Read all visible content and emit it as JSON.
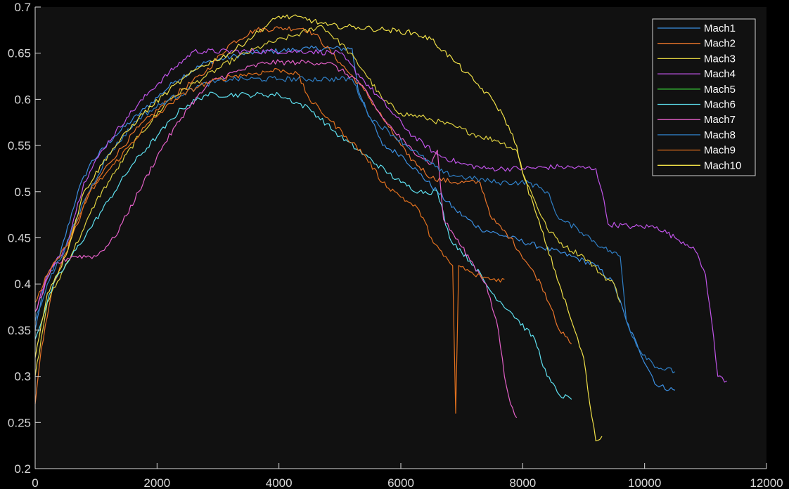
{
  "chart_data": {
    "type": "line",
    "title": "",
    "xlabel": "",
    "ylabel": "",
    "xlim": [
      0,
      12000
    ],
    "ylim": [
      0.2,
      0.7
    ],
    "x_ticks": [
      "0",
      "2000",
      "4000",
      "6000",
      "8000",
      "10000",
      "12000"
    ],
    "y_ticks": [
      "0.2",
      "0.25",
      "0.3",
      "0.35",
      "0.4",
      "0.45",
      "0.5",
      "0.55",
      "0.6",
      "0.65",
      "0.7"
    ],
    "grid": false,
    "legend_position": "top-right",
    "background_color": "#111111",
    "series": [
      {
        "name": "Mach1",
        "color": "#3b8ee0",
        "points": [
          [
            0,
            0.35
          ],
          [
            150,
            0.4
          ],
          [
            400,
            0.43
          ],
          [
            700,
            0.5
          ],
          [
            900,
            0.53
          ],
          [
            1300,
            0.56
          ],
          [
            1800,
            0.59
          ],
          [
            2300,
            0.62
          ],
          [
            2800,
            0.64
          ],
          [
            3500,
            0.65
          ],
          [
            4500,
            0.655
          ],
          [
            5200,
            0.655
          ],
          [
            5300,
            0.61
          ],
          [
            5500,
            0.58
          ],
          [
            5700,
            0.55
          ],
          [
            6000,
            0.54
          ],
          [
            6300,
            0.52
          ],
          [
            6600,
            0.5
          ],
          [
            6900,
            0.48
          ],
          [
            7300,
            0.46
          ],
          [
            7800,
            0.45
          ],
          [
            8300,
            0.44
          ],
          [
            8800,
            0.43
          ],
          [
            9200,
            0.42
          ],
          [
            9500,
            0.4
          ],
          [
            9700,
            0.36
          ],
          [
            9900,
            0.33
          ],
          [
            10200,
            0.29
          ],
          [
            10500,
            0.285
          ]
        ]
      },
      {
        "name": "Mach2",
        "color": "#e8742a",
        "points": [
          [
            0,
            0.27
          ],
          [
            100,
            0.33
          ],
          [
            300,
            0.4
          ],
          [
            600,
            0.45
          ],
          [
            900,
            0.5
          ],
          [
            1200,
            0.53
          ],
          [
            1700,
            0.57
          ],
          [
            2200,
            0.6
          ],
          [
            2800,
            0.63
          ],
          [
            3200,
            0.66
          ],
          [
            3600,
            0.675
          ],
          [
            4000,
            0.677
          ],
          [
            4400,
            0.677
          ],
          [
            4600,
            0.67
          ],
          [
            5000,
            0.64
          ],
          [
            5400,
            0.61
          ],
          [
            5800,
            0.57
          ],
          [
            6100,
            0.54
          ],
          [
            6500,
            0.515
          ],
          [
            6900,
            0.51
          ],
          [
            7300,
            0.51
          ],
          [
            7500,
            0.47
          ],
          [
            7800,
            0.45
          ],
          [
            8100,
            0.42
          ],
          [
            8300,
            0.4
          ],
          [
            8500,
            0.37
          ],
          [
            8600,
            0.35
          ],
          [
            8800,
            0.335
          ]
        ]
      },
      {
        "name": "Mach3",
        "color": "#ded040",
        "points": [
          [
            0,
            0.3
          ],
          [
            200,
            0.38
          ],
          [
            500,
            0.42
          ],
          [
            800,
            0.46
          ],
          [
            1000,
            0.49
          ],
          [
            1300,
            0.52
          ],
          [
            1700,
            0.56
          ],
          [
            2200,
            0.6
          ],
          [
            2800,
            0.625
          ],
          [
            3300,
            0.645
          ],
          [
            3800,
            0.66
          ],
          [
            4300,
            0.67
          ],
          [
            4700,
            0.68
          ],
          [
            5100,
            0.655
          ],
          [
            5400,
            0.63
          ],
          [
            5700,
            0.6
          ],
          [
            6000,
            0.585
          ],
          [
            6400,
            0.58
          ],
          [
            6900,
            0.57
          ],
          [
            7300,
            0.56
          ],
          [
            7600,
            0.555
          ],
          [
            7900,
            0.545
          ],
          [
            8000,
            0.52
          ],
          [
            8200,
            0.49
          ],
          [
            8400,
            0.46
          ],
          [
            8700,
            0.44
          ],
          [
            9000,
            0.43
          ],
          [
            9300,
            0.41
          ],
          [
            9500,
            0.4
          ],
          [
            9600,
            0.38
          ]
        ]
      },
      {
        "name": "Mach4",
        "color": "#c054e8",
        "points": [
          [
            0,
            0.37
          ],
          [
            200,
            0.41
          ],
          [
            500,
            0.44
          ],
          [
            800,
            0.51
          ],
          [
            1100,
            0.545
          ],
          [
            1500,
            0.58
          ],
          [
            1900,
            0.61
          ],
          [
            2300,
            0.635
          ],
          [
            2600,
            0.652
          ],
          [
            3500,
            0.652
          ],
          [
            4500,
            0.652
          ],
          [
            5000,
            0.65
          ],
          [
            5400,
            0.62
          ],
          [
            5800,
            0.59
          ],
          [
            6200,
            0.56
          ],
          [
            6600,
            0.54
          ],
          [
            7000,
            0.53
          ],
          [
            7400,
            0.525
          ],
          [
            8000,
            0.525
          ],
          [
            8600,
            0.527
          ],
          [
            9200,
            0.525
          ],
          [
            9300,
            0.5
          ],
          [
            9400,
            0.465
          ],
          [
            9800,
            0.462
          ],
          [
            10200,
            0.462
          ],
          [
            10500,
            0.45
          ],
          [
            10800,
            0.44
          ],
          [
            11000,
            0.41
          ],
          [
            11100,
            0.36
          ],
          [
            11200,
            0.3
          ],
          [
            11350,
            0.295
          ]
        ]
      },
      {
        "name": "Mach5",
        "color": "#36c236",
        "points": []
      },
      {
        "name": "Mach6",
        "color": "#5ee0f0",
        "points": [
          [
            0,
            0.34
          ],
          [
            300,
            0.4
          ],
          [
            600,
            0.43
          ],
          [
            900,
            0.46
          ],
          [
            1200,
            0.49
          ],
          [
            1600,
            0.53
          ],
          [
            2000,
            0.56
          ],
          [
            2400,
            0.59
          ],
          [
            2800,
            0.605
          ],
          [
            3500,
            0.605
          ],
          [
            4000,
            0.605
          ],
          [
            4500,
            0.59
          ],
          [
            5000,
            0.56
          ],
          [
            5400,
            0.54
          ],
          [
            5800,
            0.52
          ],
          [
            6000,
            0.51
          ],
          [
            6300,
            0.5
          ],
          [
            6600,
            0.5
          ],
          [
            6800,
            0.45
          ],
          [
            7200,
            0.42
          ],
          [
            7500,
            0.39
          ],
          [
            7800,
            0.37
          ],
          [
            8200,
            0.34
          ],
          [
            8400,
            0.3
          ],
          [
            8600,
            0.28
          ],
          [
            8800,
            0.275
          ]
        ]
      },
      {
        "name": "Mach7",
        "color": "#e460c8",
        "points": [
          [
            0,
            0.37
          ],
          [
            300,
            0.42
          ],
          [
            600,
            0.43
          ],
          [
            1000,
            0.43
          ],
          [
            1300,
            0.45
          ],
          [
            1700,
            0.5
          ],
          [
            2100,
            0.55
          ],
          [
            2500,
            0.59
          ],
          [
            2900,
            0.62
          ],
          [
            3300,
            0.63
          ],
          [
            3800,
            0.64
          ],
          [
            4300,
            0.64
          ],
          [
            4800,
            0.64
          ],
          [
            5300,
            0.62
          ],
          [
            5700,
            0.58
          ],
          [
            6100,
            0.55
          ],
          [
            6500,
            0.53
          ],
          [
            6600,
            0.545
          ],
          [
            6700,
            0.47
          ],
          [
            7000,
            0.44
          ],
          [
            7200,
            0.42
          ],
          [
            7400,
            0.4
          ],
          [
            7600,
            0.35
          ],
          [
            7700,
            0.3
          ],
          [
            7800,
            0.27
          ],
          [
            7900,
            0.255
          ]
        ]
      },
      {
        "name": "Mach8",
        "color": "#2f7ec4",
        "points": [
          [
            0,
            0.36
          ],
          [
            200,
            0.4
          ],
          [
            500,
            0.44
          ],
          [
            800,
            0.49
          ],
          [
            1200,
            0.54
          ],
          [
            1700,
            0.58
          ],
          [
            2200,
            0.6
          ],
          [
            2700,
            0.615
          ],
          [
            3200,
            0.622
          ],
          [
            4000,
            0.622
          ],
          [
            4800,
            0.622
          ],
          [
            5200,
            0.622
          ],
          [
            5500,
            0.58
          ],
          [
            5900,
            0.56
          ],
          [
            6300,
            0.54
          ],
          [
            6700,
            0.52
          ],
          [
            7100,
            0.515
          ],
          [
            7600,
            0.51
          ],
          [
            8100,
            0.51
          ],
          [
            8400,
            0.5
          ],
          [
            8600,
            0.47
          ],
          [
            8900,
            0.46
          ],
          [
            9300,
            0.44
          ],
          [
            9600,
            0.43
          ],
          [
            9700,
            0.36
          ],
          [
            9900,
            0.33
          ],
          [
            10200,
            0.31
          ],
          [
            10500,
            0.305
          ]
        ]
      },
      {
        "name": "Mach9",
        "color": "#e0701e",
        "points": [
          [
            0,
            0.38
          ],
          [
            200,
            0.41
          ],
          [
            500,
            0.44
          ],
          [
            900,
            0.5
          ],
          [
            1300,
            0.53
          ],
          [
            1800,
            0.57
          ],
          [
            2300,
            0.6
          ],
          [
            2700,
            0.615
          ],
          [
            3200,
            0.625
          ],
          [
            3600,
            0.628
          ],
          [
            4000,
            0.632
          ],
          [
            4300,
            0.628
          ],
          [
            4500,
            0.6
          ],
          [
            4800,
            0.58
          ],
          [
            5100,
            0.56
          ],
          [
            5400,
            0.54
          ],
          [
            5700,
            0.51
          ],
          [
            5900,
            0.5
          ],
          [
            6100,
            0.49
          ],
          [
            6300,
            0.48
          ],
          [
            6500,
            0.45
          ],
          [
            6700,
            0.43
          ],
          [
            6850,
            0.42
          ],
          [
            6900,
            0.26
          ],
          [
            6950,
            0.42
          ],
          [
            7200,
            0.41
          ],
          [
            7500,
            0.405
          ],
          [
            7700,
            0.405
          ]
        ]
      },
      {
        "name": "Mach10",
        "color": "#f0e048",
        "points": [
          [
            0,
            0.32
          ],
          [
            200,
            0.39
          ],
          [
            500,
            0.43
          ],
          [
            800,
            0.5
          ],
          [
            1200,
            0.54
          ],
          [
            1700,
            0.58
          ],
          [
            2200,
            0.61
          ],
          [
            2700,
            0.635
          ],
          [
            3200,
            0.65
          ],
          [
            3600,
            0.67
          ],
          [
            4000,
            0.69
          ],
          [
            4400,
            0.688
          ],
          [
            4800,
            0.68
          ],
          [
            5300,
            0.678
          ],
          [
            5800,
            0.675
          ],
          [
            6200,
            0.672
          ],
          [
            6500,
            0.665
          ],
          [
            6900,
            0.64
          ],
          [
            7200,
            0.62
          ],
          [
            7500,
            0.6
          ],
          [
            7700,
            0.58
          ],
          [
            7900,
            0.55
          ],
          [
            8000,
            0.52
          ],
          [
            8200,
            0.48
          ],
          [
            8400,
            0.44
          ],
          [
            8600,
            0.4
          ],
          [
            8800,
            0.36
          ],
          [
            9000,
            0.32
          ],
          [
            9100,
            0.27
          ],
          [
            9200,
            0.23
          ],
          [
            9300,
            0.235
          ]
        ]
      }
    ]
  }
}
